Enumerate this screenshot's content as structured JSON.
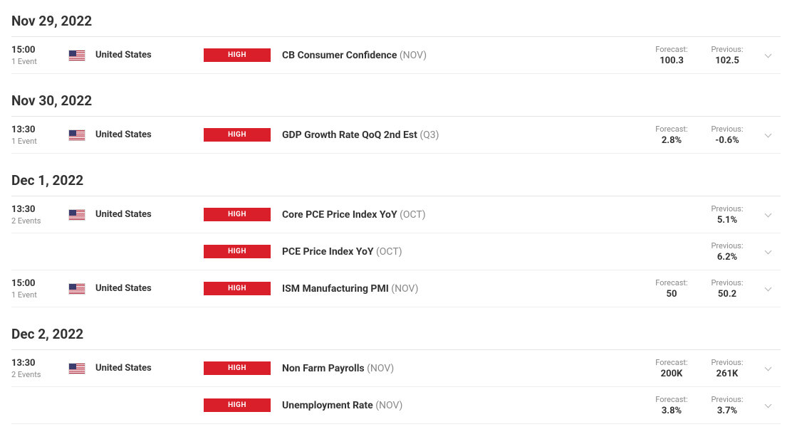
{
  "labels": {
    "forecast": "Forecast:",
    "previous": "Previous:",
    "event_singular": "Event",
    "event_plural": "Events"
  },
  "colors": {
    "impact_high_bg": "#d91f2a",
    "text_primary": "#333333",
    "text_muted": "#888888",
    "border": "#e5e5e5"
  },
  "days": [
    {
      "date": "Nov 29, 2022",
      "groups": [
        {
          "time": "15:00",
          "events_count": 1,
          "events_count_label": "1 Event",
          "country": "United States",
          "flag": "us",
          "events": [
            {
              "impact": "HIGH",
              "name": "CB Consumer Confidence",
              "period": "(NOV)",
              "forecast": "100.3",
              "previous": "102.5"
            }
          ]
        }
      ]
    },
    {
      "date": "Nov 30, 2022",
      "groups": [
        {
          "time": "13:30",
          "events_count": 1,
          "events_count_label": "1 Event",
          "country": "United States",
          "flag": "us",
          "events": [
            {
              "impact": "HIGH",
              "name": "GDP Growth Rate QoQ 2nd Est",
              "period": "(Q3)",
              "forecast": "2.8%",
              "previous": "-0.6%"
            }
          ]
        }
      ]
    },
    {
      "date": "Dec 1, 2022",
      "groups": [
        {
          "time": "13:30",
          "events_count": 2,
          "events_count_label": "2 Events",
          "country": "United States",
          "flag": "us",
          "events": [
            {
              "impact": "HIGH",
              "name": "Core PCE Price Index YoY",
              "period": "(OCT)",
              "forecast": "",
              "previous": "5.1%"
            },
            {
              "impact": "HIGH",
              "name": "PCE Price Index YoY",
              "period": "(OCT)",
              "forecast": "",
              "previous": "6.2%"
            }
          ]
        },
        {
          "time": "15:00",
          "events_count": 1,
          "events_count_label": "1 Event",
          "country": "United States",
          "flag": "us",
          "events": [
            {
              "impact": "HIGH",
              "name": "ISM Manufacturing PMI",
              "period": "(NOV)",
              "forecast": "50",
              "previous": "50.2"
            }
          ]
        }
      ]
    },
    {
      "date": "Dec 2, 2022",
      "groups": [
        {
          "time": "13:30",
          "events_count": 2,
          "events_count_label": "2 Events",
          "country": "United States",
          "flag": "us",
          "events": [
            {
              "impact": "HIGH",
              "name": "Non Farm Payrolls",
              "period": "(NOV)",
              "forecast": "200K",
              "previous": "261K"
            },
            {
              "impact": "HIGH",
              "name": "Unemployment Rate",
              "period": "(NOV)",
              "forecast": "3.8%",
              "previous": "3.7%"
            }
          ]
        }
      ]
    }
  ]
}
